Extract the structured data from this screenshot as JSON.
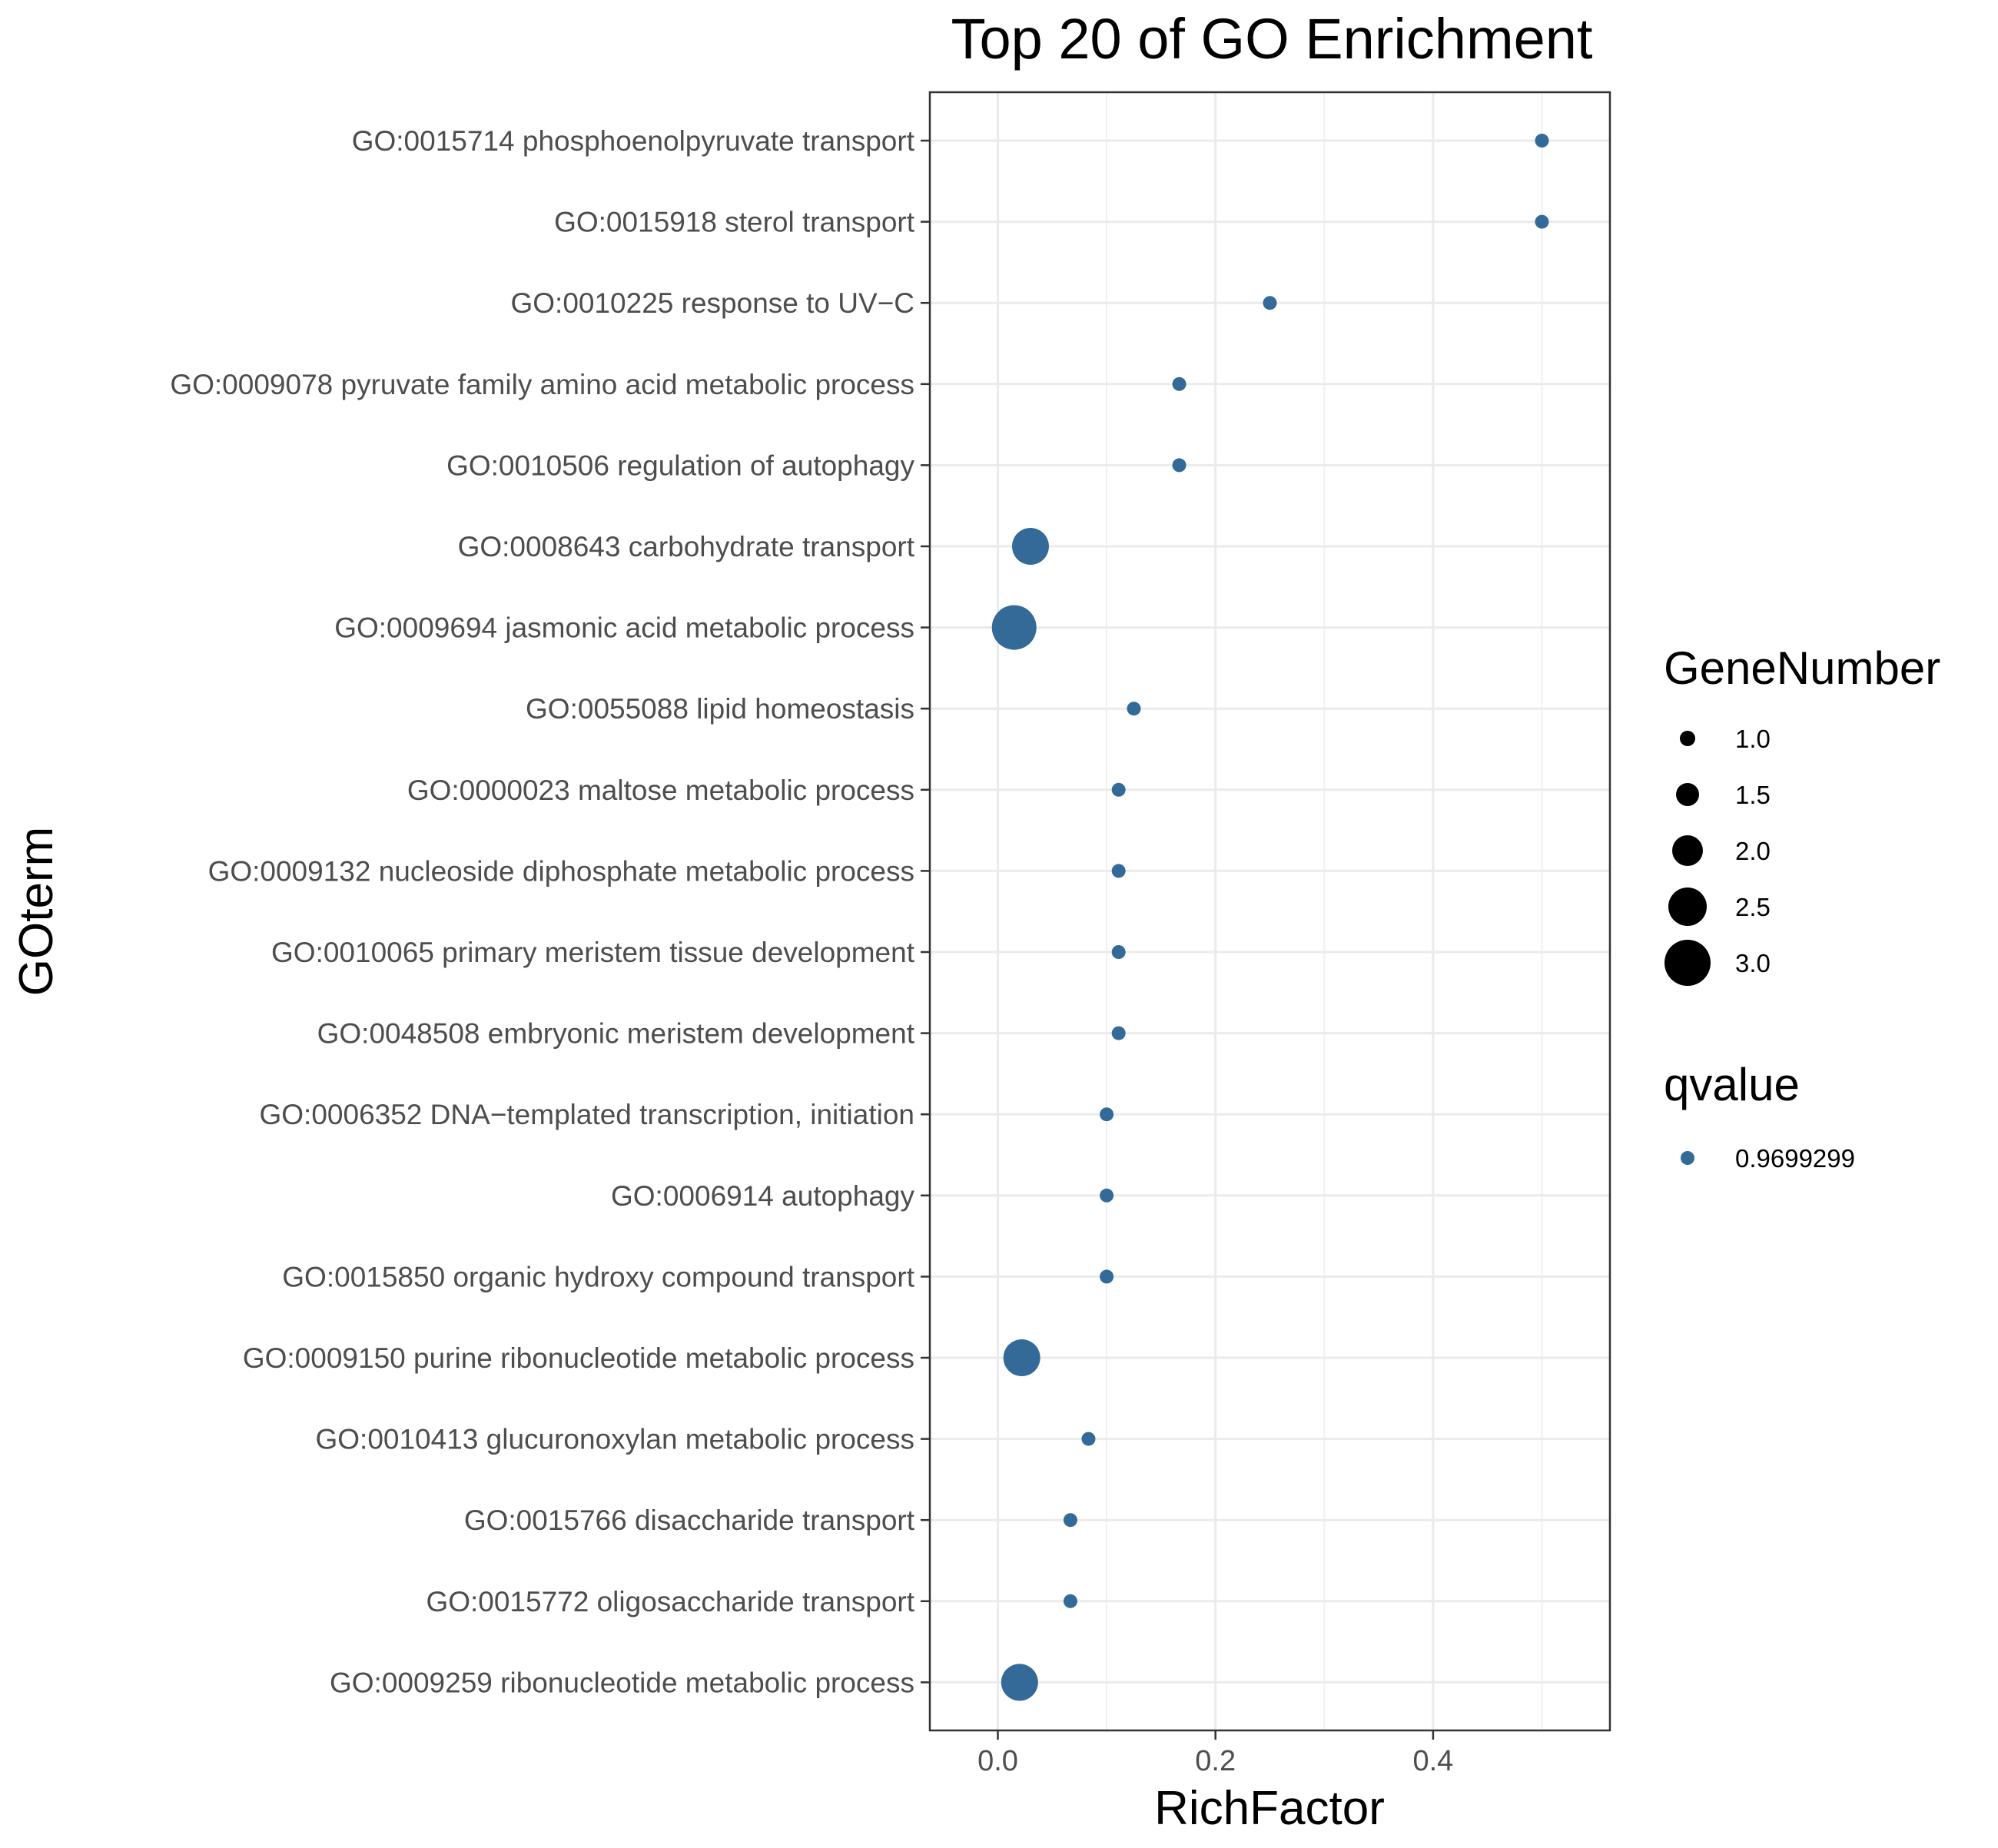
{
  "chart_data": {
    "type": "scatter",
    "title": "Top 20 of GO Enrichment",
    "xlabel": "RichFactor",
    "ylabel": "GOterm",
    "xlim": [
      -0.0625,
      0.5625
    ],
    "xticks": [
      0.0,
      0.2,
      0.4
    ],
    "xtick_labels": [
      "0.0",
      "0.2",
      "0.4"
    ],
    "grid": true,
    "point_color": "#336A98",
    "categories": [
      "GO:0015714 phosphoenolpyruvate transport",
      "GO:0015918 sterol transport",
      "GO:0010225 response to UV−C",
      "GO:0009078 pyruvate family amino acid metabolic process",
      "GO:0010506 regulation of autophagy",
      "GO:0008643 carbohydrate transport",
      "GO:0009694 jasmonic acid metabolic process",
      "GO:0055088 lipid homeostasis",
      "GO:0000023 maltose metabolic process",
      "GO:0009132 nucleoside diphosphate metabolic process",
      "GO:0010065 primary meristem tissue development",
      "GO:0048508 embryonic meristem development",
      "GO:0006352 DNA−templated transcription, initiation",
      "GO:0006914 autophagy",
      "GO:0015850 organic hydroxy compound transport",
      "GO:0009150 purine ribonucleotide metabolic process",
      "GO:0010413 glucuronoxylan metabolic process",
      "GO:0015766 disaccharide transport",
      "GO:0015772 oligosaccharide transport",
      "GO:0009259 ribonucleotide metabolic process"
    ],
    "points": [
      {
        "term": "GO:0015714 phosphoenolpyruvate transport",
        "rich_factor": 0.5,
        "gene_number": 1
      },
      {
        "term": "GO:0015918 sterol transport",
        "rich_factor": 0.5,
        "gene_number": 1
      },
      {
        "term": "GO:0010225 response to UV−C",
        "rich_factor": 0.25,
        "gene_number": 1
      },
      {
        "term": "GO:0009078 pyruvate family amino acid metabolic process",
        "rich_factor": 0.1667,
        "gene_number": 1
      },
      {
        "term": "GO:0010506 regulation of autophagy",
        "rich_factor": 0.1667,
        "gene_number": 1
      },
      {
        "term": "GO:0008643 carbohydrate transport",
        "rich_factor": 0.03,
        "gene_number": 2.5
      },
      {
        "term": "GO:0009694 jasmonic acid metabolic process",
        "rich_factor": 0.015,
        "gene_number": 3
      },
      {
        "term": "GO:0055088 lipid homeostasis",
        "rich_factor": 0.125,
        "gene_number": 1
      },
      {
        "term": "GO:0000023 maltose metabolic process",
        "rich_factor": 0.111,
        "gene_number": 1
      },
      {
        "term": "GO:0009132 nucleoside diphosphate metabolic process",
        "rich_factor": 0.111,
        "gene_number": 1
      },
      {
        "term": "GO:0010065 primary meristem tissue development",
        "rich_factor": 0.111,
        "gene_number": 1
      },
      {
        "term": "GO:0048508 embryonic meristem development",
        "rich_factor": 0.111,
        "gene_number": 1
      },
      {
        "term": "GO:0006352 DNA−templated transcription, initiation",
        "rich_factor": 0.1,
        "gene_number": 1
      },
      {
        "term": "GO:0006914 autophagy",
        "rich_factor": 0.1,
        "gene_number": 1
      },
      {
        "term": "GO:0015850 organic hydroxy compound transport",
        "rich_factor": 0.1,
        "gene_number": 1
      },
      {
        "term": "GO:0009150 purine ribonucleotide metabolic process",
        "rich_factor": 0.022,
        "gene_number": 2.5
      },
      {
        "term": "GO:0010413 glucuronoxylan metabolic process",
        "rich_factor": 0.0833,
        "gene_number": 1
      },
      {
        "term": "GO:0015766 disaccharide transport",
        "rich_factor": 0.0667,
        "gene_number": 1
      },
      {
        "term": "GO:0015772 oligosaccharide transport",
        "rich_factor": 0.0667,
        "gene_number": 1
      },
      {
        "term": "GO:0009259 ribonucleotide metabolic process",
        "rich_factor": 0.02,
        "gene_number": 2.5
      }
    ],
    "legend_size": {
      "title": "GeneNumber",
      "values": [
        1.0,
        1.5,
        2.0,
        2.5,
        3.0
      ],
      "labels": [
        "1.0",
        "1.5",
        "2.0",
        "2.5",
        "3.0"
      ]
    },
    "legend_color": {
      "title": "qvalue",
      "labels": [
        "0.9699299"
      ],
      "colors": [
        "#336A98"
      ]
    },
    "legend_placement": "right"
  }
}
